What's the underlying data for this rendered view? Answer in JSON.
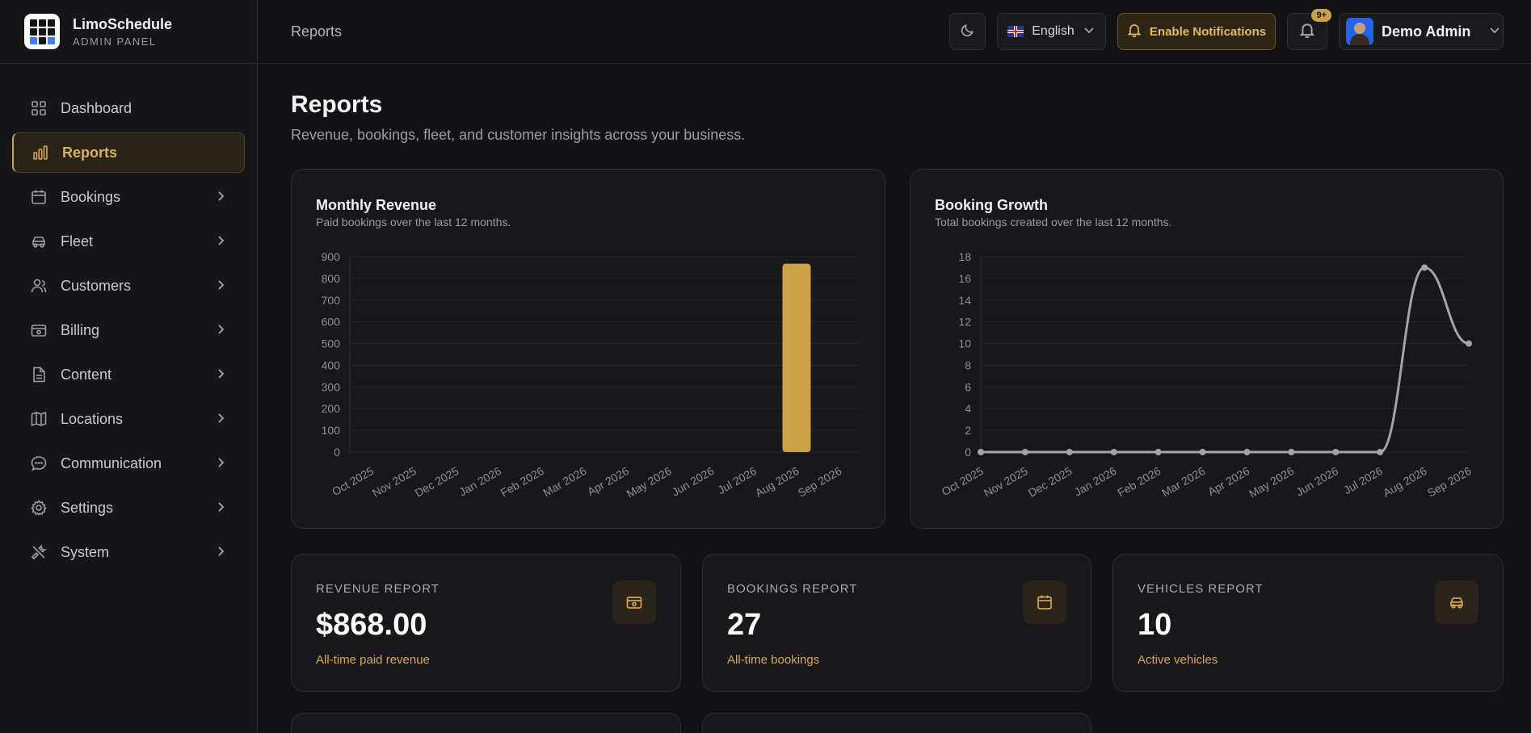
{
  "brand": {
    "name": "LimoSchedule",
    "subtitle": "ADMIN PANEL"
  },
  "sidebar": {
    "items": [
      {
        "label": "Dashboard",
        "icon": "grid-icon",
        "active": false,
        "has_children": false
      },
      {
        "label": "Reports",
        "icon": "bar-chart-icon",
        "active": true,
        "has_children": false
      },
      {
        "label": "Bookings",
        "icon": "calendar-icon",
        "active": false,
        "has_children": true
      },
      {
        "label": "Fleet",
        "icon": "car-icon",
        "active": false,
        "has_children": true
      },
      {
        "label": "Customers",
        "icon": "users-icon",
        "active": false,
        "has_children": true
      },
      {
        "label": "Billing",
        "icon": "wallet-icon",
        "active": false,
        "has_children": true
      },
      {
        "label": "Content",
        "icon": "document-icon",
        "active": false,
        "has_children": true
      },
      {
        "label": "Locations",
        "icon": "map-icon",
        "active": false,
        "has_children": true
      },
      {
        "label": "Communication",
        "icon": "chat-icon",
        "active": false,
        "has_children": true
      },
      {
        "label": "Settings",
        "icon": "gear-icon",
        "active": false,
        "has_children": true
      },
      {
        "label": "System",
        "icon": "tools-icon",
        "active": false,
        "has_children": true
      }
    ]
  },
  "header": {
    "breadcrumb": "Reports",
    "language": "English",
    "notifications_button": "Enable Notifications",
    "notification_badge": "9+",
    "user_name": "Demo Admin"
  },
  "page": {
    "title": "Reports",
    "subtitle": "Revenue, bookings, fleet, and customer insights across your business."
  },
  "charts": {
    "revenue": {
      "title": "Monthly Revenue",
      "subtitle": "Paid bookings over the last 12 months."
    },
    "bookings": {
      "title": "Booking Growth",
      "subtitle": "Total bookings created over the last 12 months."
    }
  },
  "chart_data": [
    {
      "type": "bar",
      "title": "Monthly Revenue",
      "categories": [
        "Oct 2025",
        "Nov 2025",
        "Dec 2025",
        "Jan 2026",
        "Feb 2026",
        "Mar 2026",
        "Apr 2026",
        "May 2026",
        "Jun 2026",
        "Jul 2026",
        "Aug 2026",
        "Sep 2026"
      ],
      "values": [
        0,
        0,
        0,
        0,
        0,
        0,
        0,
        0,
        0,
        0,
        868,
        0
      ],
      "yticks": [
        0,
        100,
        200,
        300,
        400,
        500,
        600,
        700,
        800,
        900
      ],
      "ylim": [
        0,
        900
      ],
      "color": "#c9a24a",
      "grid": true
    },
    {
      "type": "line",
      "title": "Booking Growth",
      "categories": [
        "Oct 2025",
        "Nov 2025",
        "Dec 2025",
        "Jan 2026",
        "Feb 2026",
        "Mar 2026",
        "Apr 2026",
        "May 2026",
        "Jun 2026",
        "Jul 2026",
        "Aug 2026",
        "Sep 2026"
      ],
      "values": [
        0,
        0,
        0,
        0,
        0,
        0,
        0,
        0,
        0,
        0,
        17,
        10
      ],
      "yticks": [
        0,
        2,
        4,
        6,
        8,
        10,
        12,
        14,
        16,
        18
      ],
      "ylim": [
        0,
        18
      ],
      "color": "#a3a3ab",
      "grid": true
    }
  ],
  "stats": [
    {
      "label": "REVENUE REPORT",
      "value": "$868.00",
      "note": "All-time paid revenue",
      "icon": "wallet-icon"
    },
    {
      "label": "BOOKINGS REPORT",
      "value": "27",
      "note": "All-time bookings",
      "icon": "calendar-icon"
    },
    {
      "label": "VEHICLES REPORT",
      "value": "10",
      "note": "Active vehicles",
      "icon": "car-icon"
    }
  ],
  "colors": {
    "accent": "#c9a24a",
    "background": "#131315",
    "card": "#18181b"
  }
}
